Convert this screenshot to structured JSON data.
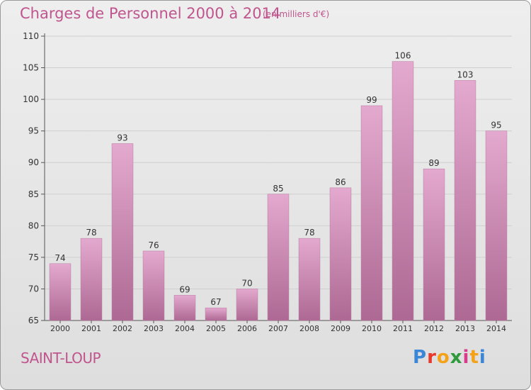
{
  "header": {
    "title": "Charges de Personnel 2000 à 2014",
    "unit_note": "(en milliers d'€)"
  },
  "footer": {
    "commune": "SAINT-LOUP",
    "brand": "Proxiti",
    "brand_letter_colors": [
      "#3a86d8",
      "#e8392a",
      "#f3a21a",
      "#2e9a3c",
      "#d93a8b",
      "#f3a21a",
      "#3a86d8"
    ]
  },
  "colors": {
    "title": "#c0558e",
    "bar_top": "#e4a9cf",
    "bar_bottom": "#ad6993",
    "axis": "#555555",
    "grid": "#cfcfcf"
  },
  "chart_data": {
    "type": "bar",
    "title": "Charges de Personnel 2000 à 2014",
    "subtitle": "(en milliers d'€)",
    "xlabel": "",
    "ylabel": "",
    "categories": [
      "2000",
      "2001",
      "2002",
      "2003",
      "2004",
      "2005",
      "2006",
      "2007",
      "2008",
      "2009",
      "2010",
      "2011",
      "2012",
      "2013",
      "2014"
    ],
    "values": [
      74,
      78,
      93,
      76,
      69,
      67,
      70,
      85,
      78,
      86,
      99,
      106,
      89,
      103,
      95
    ],
    "ylim": [
      65,
      110
    ],
    "yticks": [
      65,
      70,
      75,
      80,
      85,
      90,
      95,
      100,
      105,
      110
    ],
    "grid": true,
    "data_labels": true
  }
}
